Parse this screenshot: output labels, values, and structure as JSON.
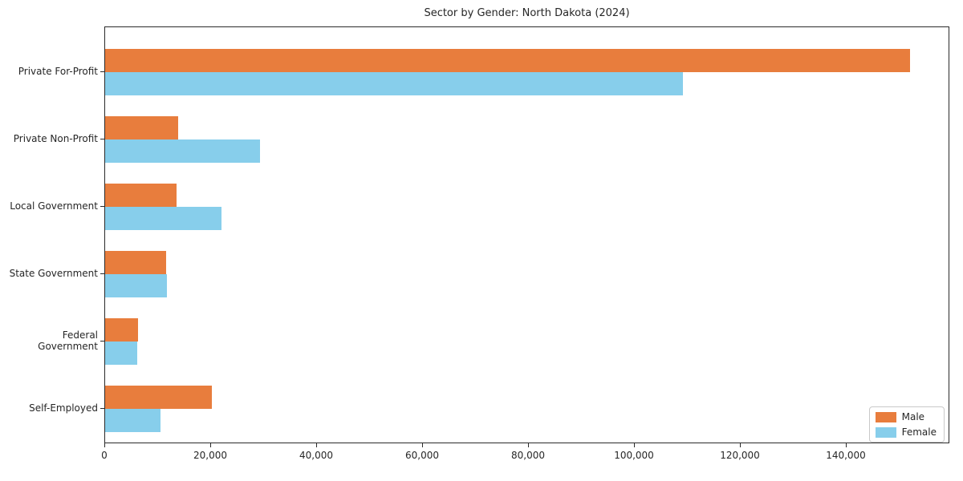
{
  "chart_data": {
    "type": "bar",
    "orientation": "horizontal",
    "title": "Sector by Gender: North Dakota (2024)",
    "categories": [
      "Private For-Profit",
      "Private Non-Profit",
      "Local Government",
      "State Government",
      "Federal Government",
      "Self-Employed"
    ],
    "series": [
      {
        "name": "Male",
        "color": "#e87d3d",
        "values": [
          152000,
          13800,
          13500,
          11500,
          6200,
          20100
        ]
      },
      {
        "name": "Female",
        "color": "#87ceeb",
        "values": [
          109000,
          29200,
          22000,
          11600,
          6100,
          10400
        ]
      }
    ],
    "xlabel": "",
    "ylabel": "",
    "xlim": [
      0,
      159500
    ],
    "x_ticks": [
      {
        "value": 0,
        "label": "0"
      },
      {
        "value": 20000,
        "label": "20,000"
      },
      {
        "value": 40000,
        "label": "40,000"
      },
      {
        "value": 60000,
        "label": "60,000"
      },
      {
        "value": 80000,
        "label": "80,000"
      },
      {
        "value": 100000,
        "label": "100,000"
      },
      {
        "value": 120000,
        "label": "120,000"
      },
      {
        "value": 140000,
        "label": "140,000"
      }
    ],
    "grid": false,
    "legend": {
      "position": "lower right",
      "entries": [
        "Male",
        "Female"
      ]
    }
  },
  "colors": {
    "background": "#ffffff",
    "axis": "#2a2a2a",
    "legend_border": "#c9c9c9",
    "male": "#e87d3d",
    "female": "#87ceeb"
  }
}
